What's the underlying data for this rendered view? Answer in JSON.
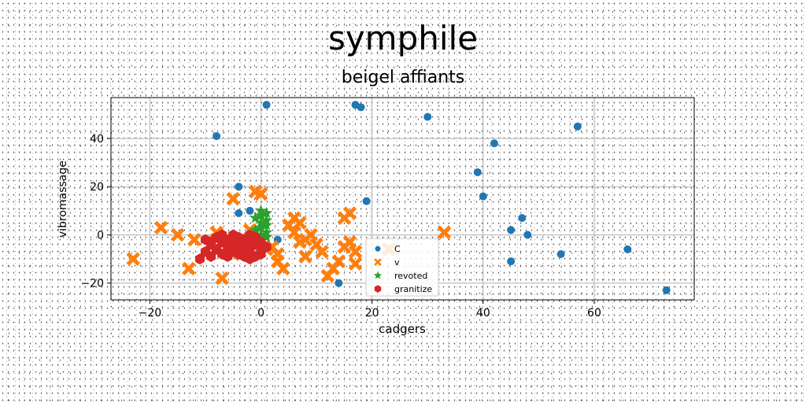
{
  "title": "symphile",
  "subtitle": "beigel affiants",
  "chart_data": {
    "type": "scatter",
    "xlabel": "cadgers",
    "ylabel": "vibromassage",
    "xlim": [
      -27,
      78
    ],
    "ylim": [
      -27,
      57
    ],
    "xticks": [
      -20,
      0,
      20,
      40,
      60
    ],
    "yticks": [
      -20,
      0,
      20,
      40
    ],
    "grid": true,
    "legend_position": "lower-center",
    "series": [
      {
        "name": "C",
        "marker": "circle",
        "color": "#1f77b4",
        "x": [
          1,
          17,
          18,
          30,
          57,
          -8,
          42,
          39,
          -4,
          40,
          19,
          -4,
          -2,
          47,
          45,
          48,
          3,
          45,
          54,
          66,
          73,
          14
        ],
        "y": [
          54,
          54,
          53,
          49,
          45,
          41,
          38,
          26,
          20,
          16,
          14,
          9,
          10,
          7,
          2,
          0,
          -2,
          -11,
          -8,
          -6,
          -23,
          -20
        ]
      },
      {
        "name": "v",
        "marker": "x",
        "color": "#ff7f0e",
        "x": [
          -23,
          -18,
          -15,
          -13,
          -12,
          -8,
          -7,
          -5,
          -3,
          -1,
          0,
          1,
          2,
          3,
          4,
          5,
          6,
          7,
          8,
          8,
          9,
          10,
          11,
          12,
          13,
          14,
          15,
          15,
          16,
          16,
          17,
          17,
          23,
          33,
          -5,
          -2,
          7,
          -8,
          3,
          6
        ],
        "y": [
          -10,
          3,
          0,
          -14,
          -2,
          1,
          -18,
          15,
          -5,
          18,
          17,
          -6,
          -5,
          -11,
          -14,
          4,
          7,
          -3,
          -2,
          -9,
          0,
          -4,
          -7,
          -17,
          -14,
          -11,
          -5,
          7,
          9,
          -3,
          -7,
          -12,
          -6,
          1,
          -8,
          2,
          5,
          -2,
          -8,
          1
        ],
        "size": "large"
      },
      {
        "name": "revoted",
        "marker": "star",
        "color": "#2ca02c",
        "x": [
          -1,
          0,
          1,
          0,
          1,
          -1,
          0,
          1,
          0,
          1,
          -1,
          0,
          1,
          0
        ],
        "y": [
          -4,
          -2,
          -1,
          0,
          1,
          2,
          3,
          4,
          5,
          6,
          7,
          8,
          9,
          10
        ]
      },
      {
        "name": "granitize",
        "marker": "hexagon",
        "color": "#d62728",
        "x": [
          -11,
          -10,
          -10,
          -9,
          -9,
          -8,
          -8,
          -7,
          -7,
          -7,
          -6,
          -6,
          -5,
          -5,
          -5,
          -4,
          -4,
          -3,
          -3,
          -3,
          -2,
          -2,
          -2,
          -1,
          -1,
          -1,
          0,
          0,
          0,
          1,
          -6,
          -9,
          -4,
          -2
        ],
        "y": [
          -10,
          -7,
          -2,
          -9,
          -4,
          -1,
          -6,
          -3,
          -8,
          0,
          -5,
          -2,
          -7,
          -3,
          0,
          -5,
          -1,
          -2,
          -6,
          -9,
          -3,
          -7,
          0,
          -4,
          -9,
          -1,
          -6,
          -3,
          -8,
          -5,
          -9,
          -3,
          -8,
          -10
        ]
      }
    ]
  }
}
